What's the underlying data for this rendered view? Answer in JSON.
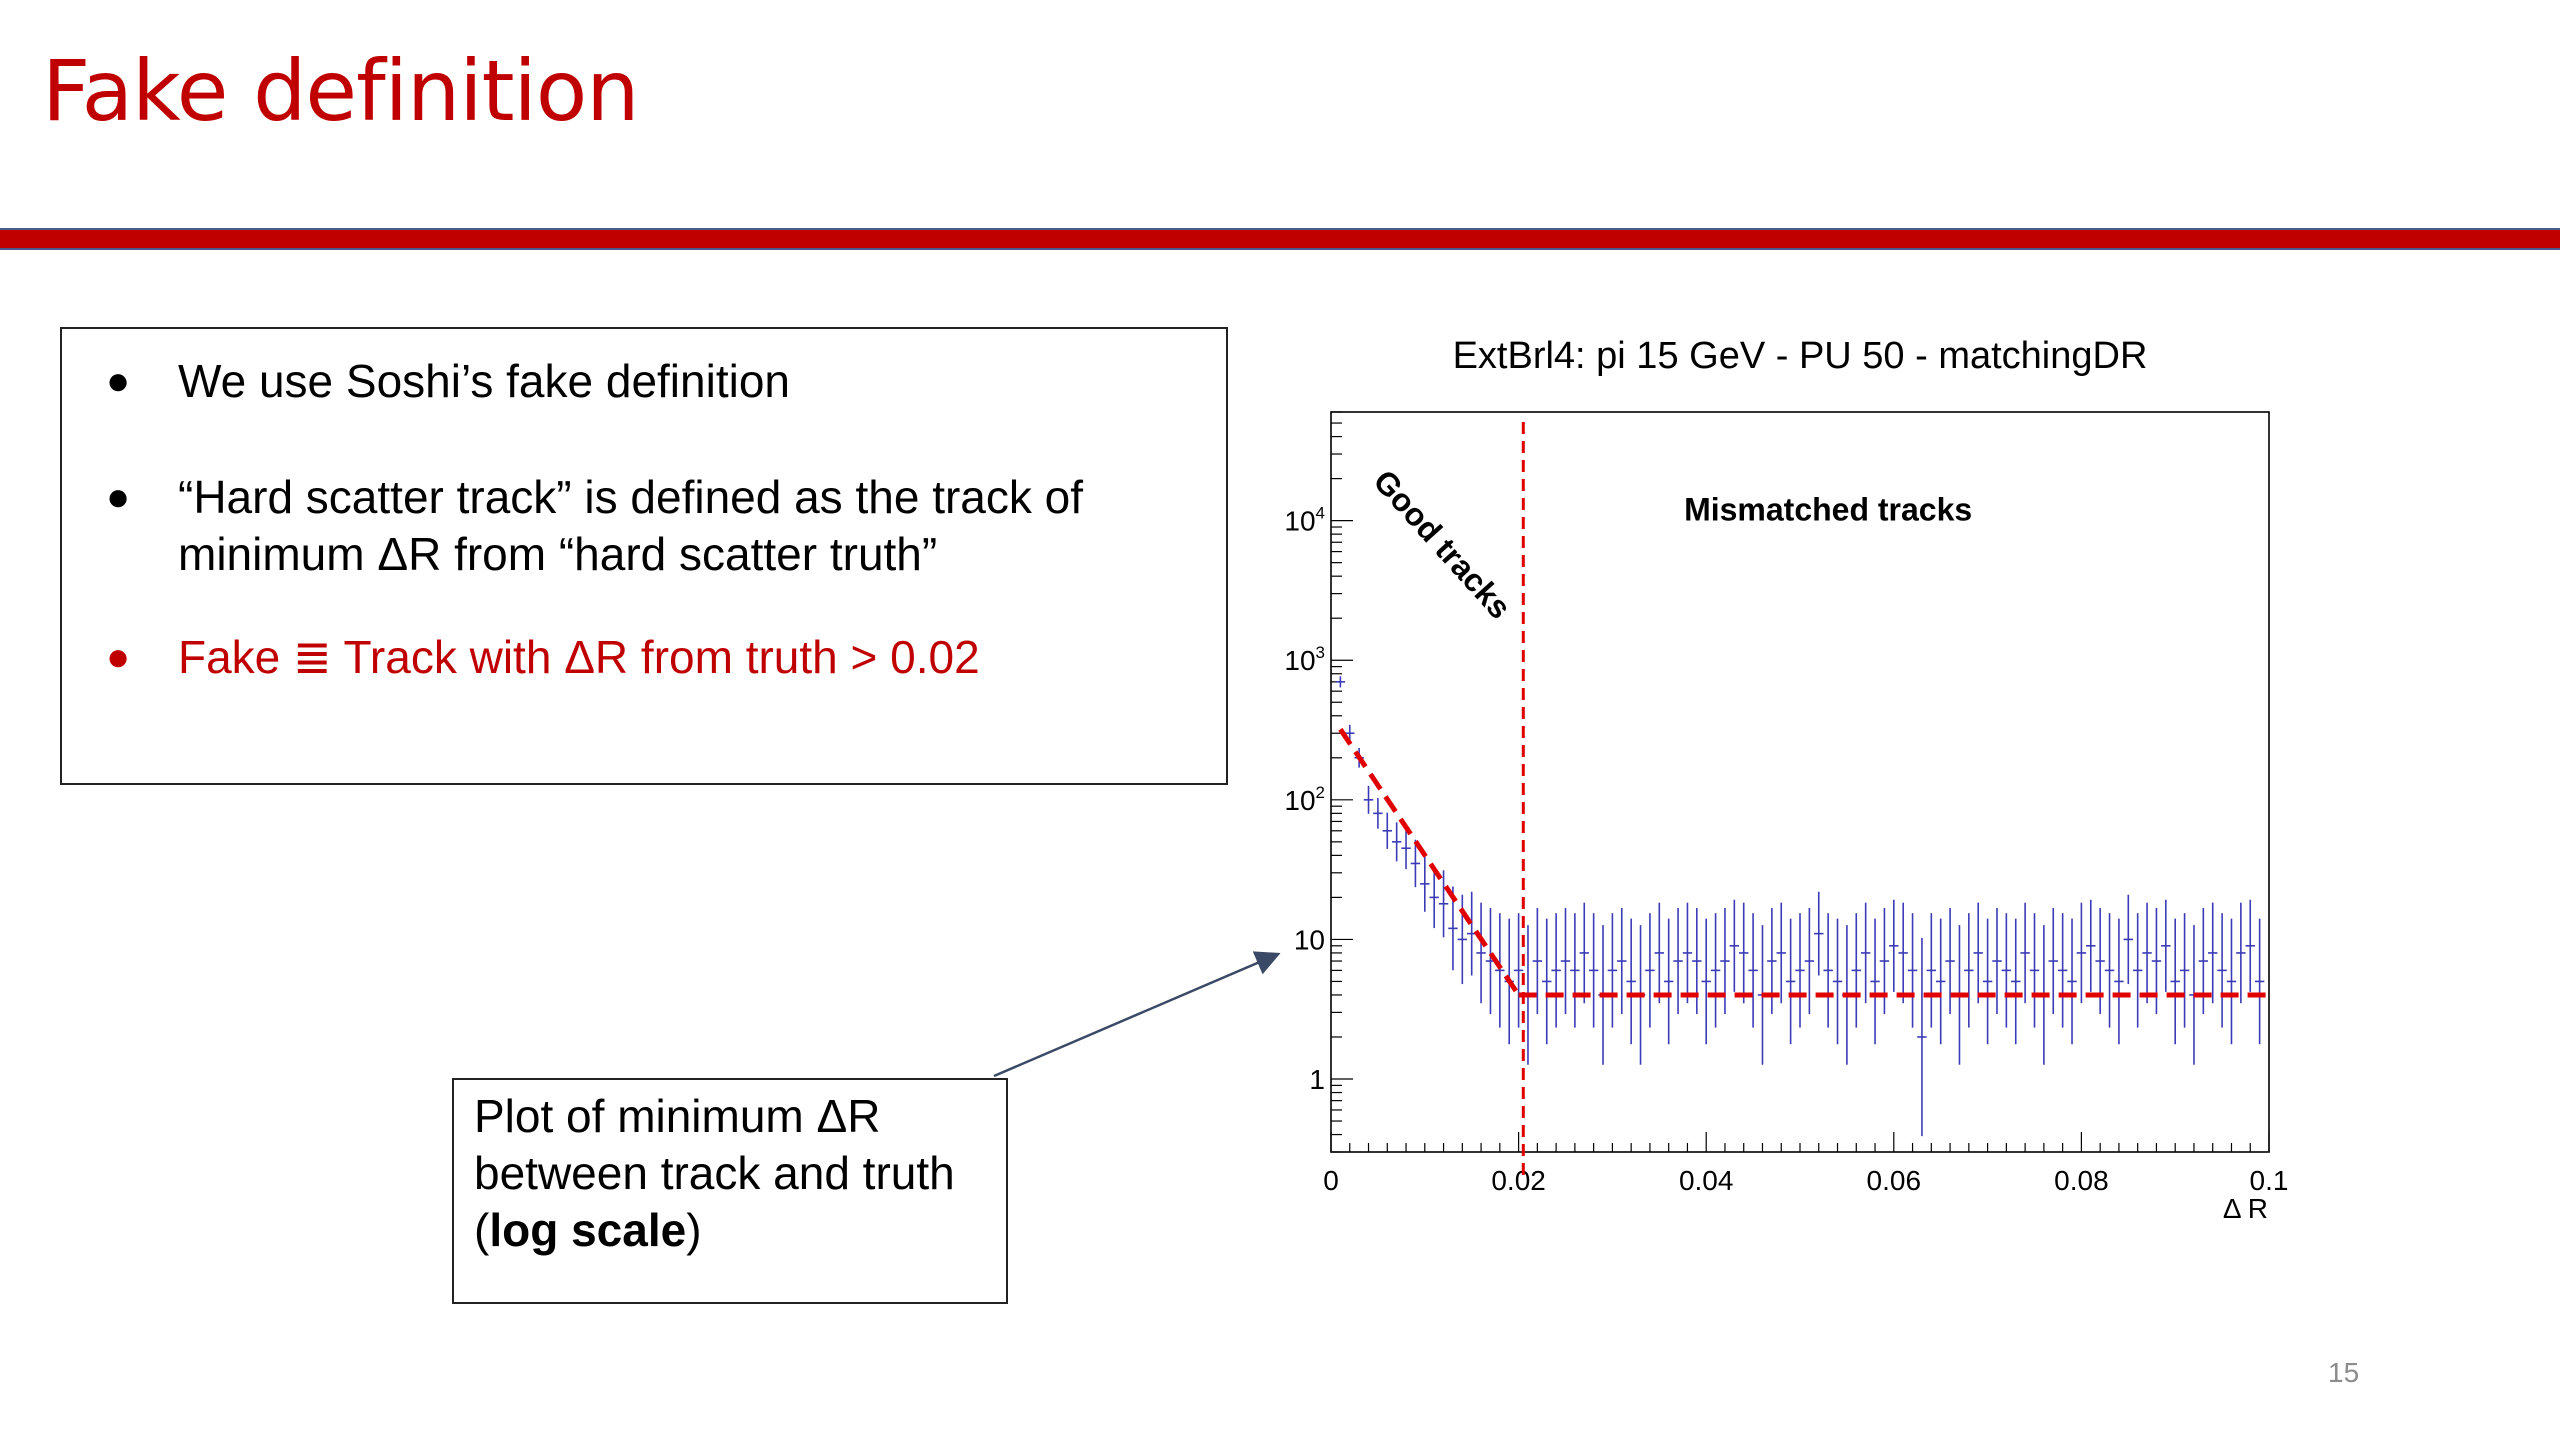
{
  "slide": {
    "title": "Fake definition",
    "page_number": "15",
    "colors": {
      "accent": "#c00000",
      "rule_border": "#4a5a8c",
      "data_points": "#3b3bb8"
    }
  },
  "bullets": [
    {
      "text": "We use Soshi’s fake definition",
      "highlight": false
    },
    {
      "text": "“Hard scatter track” is defined as the track of minimum ΔR from “hard scatter truth”",
      "highlight": false
    },
    {
      "text": "Fake ≣ Track with ΔR from truth > 0.02",
      "highlight": true
    }
  ],
  "callout": {
    "line1": "Plot of minimum ΔR",
    "line2": "between track and truth",
    "paren_open": "(",
    "bold": "log scale",
    "paren_close": ")"
  },
  "chart_data": {
    "type": "scatter",
    "title": "ExtBrl4: pi 15 GeV - PU 50 - matchingDR",
    "xlabel": "Δ R",
    "ylabel": "",
    "xlim": [
      0,
      0.1
    ],
    "ylim": [
      0.3,
      60000
    ],
    "y_scale": "log",
    "x_tick_labels": [
      "0",
      "0.02",
      "0.04",
      "0.06",
      "0.08",
      "0.1"
    ],
    "y_tick_labels": [
      {
        "value": 1,
        "base": "1",
        "exp": ""
      },
      {
        "value": 10,
        "base": "10",
        "exp": ""
      },
      {
        "value": 100,
        "base": "10",
        "exp": "2"
      },
      {
        "value": 1000,
        "base": "10",
        "exp": "3"
      },
      {
        "value": 10000,
        "base": "10",
        "exp": "4"
      }
    ],
    "annotations": [
      {
        "text": "Good tracks",
        "x": 0.011,
        "y": 6000
      },
      {
        "text": "Mismatched tracks",
        "x": 0.053,
        "y": 10000
      }
    ],
    "cut_line_x": 0.0205,
    "fit_segments": [
      {
        "x": [
          0.001,
          0.02
        ],
        "y": [
          320,
          4
        ]
      },
      {
        "x": [
          0.02,
          0.1
        ],
        "y": [
          4,
          4
        ]
      }
    ],
    "series": [
      {
        "x": [
          0.001,
          0.002,
          0.003,
          0.004,
          0.005,
          0.006,
          0.007,
          0.008,
          0.009,
          0.01,
          0.011,
          0.012,
          0.013,
          0.014,
          0.015,
          0.016,
          0.017,
          0.018,
          0.019,
          0.02,
          0.021,
          0.022,
          0.023,
          0.024,
          0.025,
          0.026,
          0.027,
          0.028,
          0.029,
          0.03,
          0.031,
          0.032,
          0.033,
          0.034,
          0.035,
          0.036,
          0.037,
          0.038,
          0.039,
          0.04,
          0.041,
          0.042,
          0.043,
          0.044,
          0.045,
          0.046,
          0.047,
          0.048,
          0.049,
          0.05,
          0.051,
          0.052,
          0.053,
          0.054,
          0.055,
          0.056,
          0.057,
          0.058,
          0.059,
          0.06,
          0.061,
          0.062,
          0.063,
          0.064,
          0.065,
          0.066,
          0.067,
          0.068,
          0.069,
          0.07,
          0.071,
          0.072,
          0.073,
          0.074,
          0.075,
          0.076,
          0.077,
          0.078,
          0.079,
          0.08,
          0.081,
          0.082,
          0.083,
          0.084,
          0.085,
          0.086,
          0.087,
          0.088,
          0.089,
          0.09,
          0.091,
          0.092,
          0.093,
          0.094,
          0.095,
          0.096,
          0.097,
          0.098,
          0.099
        ],
        "y": [
          700,
          300,
          200,
          100,
          80,
          60,
          50,
          45,
          35,
          25,
          20,
          18,
          12,
          10,
          11,
          8,
          7,
          6,
          5,
          6,
          4,
          7,
          5,
          6,
          7,
          6,
          8,
          6,
          4,
          6,
          7,
          5,
          4,
          6,
          8,
          5,
          7,
          8,
          7,
          5,
          6,
          7,
          9,
          8,
          6,
          4,
          7,
          8,
          5,
          6,
          7,
          11,
          6,
          5,
          4,
          6,
          8,
          5,
          7,
          9,
          8,
          6,
          2,
          6,
          5,
          7,
          4,
          6,
          8,
          5,
          7,
          6,
          5,
          8,
          6,
          4,
          7,
          6,
          5,
          8,
          9,
          7,
          6,
          5,
          10,
          6,
          8,
          7,
          9,
          5,
          6,
          4,
          7,
          8,
          6,
          5,
          8,
          9,
          5
        ],
        "err_low": [
          0.04,
          0.06,
          0.07,
          0.1,
          0.11,
          0.13,
          0.14,
          0.15,
          0.17,
          0.2,
          0.22,
          0.24,
          0.3,
          0.32,
          0.3,
          0.36,
          0.38,
          0.41,
          0.45,
          0.41,
          0.5,
          0.38,
          0.45,
          0.41,
          0.38,
          0.41,
          0.36,
          0.41,
          0.5,
          0.41,
          0.38,
          0.45,
          0.5,
          0.41,
          0.36,
          0.45,
          0.38,
          0.36,
          0.38,
          0.45,
          0.41,
          0.38,
          0.33,
          0.36,
          0.41,
          0.5,
          0.38,
          0.36,
          0.45,
          0.41,
          0.38,
          0.3,
          0.41,
          0.45,
          0.5,
          0.41,
          0.36,
          0.45,
          0.38,
          0.33,
          0.36,
          0.41,
          0.71,
          0.41,
          0.45,
          0.38,
          0.5,
          0.41,
          0.36,
          0.45,
          0.38,
          0.41,
          0.45,
          0.36,
          0.41,
          0.5,
          0.38,
          0.41,
          0.45,
          0.36,
          0.33,
          0.38,
          0.41,
          0.45,
          0.32,
          0.41,
          0.36,
          0.38,
          0.33,
          0.45,
          0.41,
          0.5,
          0.38,
          0.36,
          0.41,
          0.45,
          0.36,
          0.33,
          0.45
        ]
      }
    ],
    "grid": false,
    "legend": "none"
  }
}
